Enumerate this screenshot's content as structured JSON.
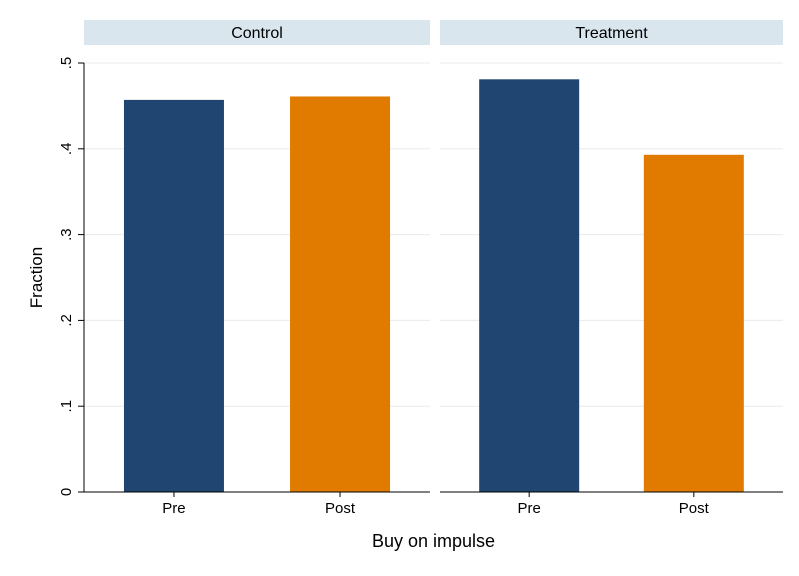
{
  "chart_data": {
    "type": "bar",
    "xlabel": "Buy on impulse",
    "ylabel": "Fraction",
    "ylim": [
      0,
      0.5
    ],
    "yticks": [
      {
        "value": 0,
        "label": "0"
      },
      {
        "value": 0.1,
        "label": ".1"
      },
      {
        "value": 0.2,
        "label": ".2"
      },
      {
        "value": 0.3,
        "label": ".3"
      },
      {
        "value": 0.4,
        "label": ".4"
      },
      {
        "value": 0.5,
        "label": ".5"
      }
    ],
    "categories": [
      "Pre",
      "Post"
    ],
    "bar_colors": [
      "#1f4570",
      "#e07b00"
    ],
    "panel_header_color": "#d9e6ee",
    "gridline_color": "#e8ebee",
    "grid": true,
    "legend": "none",
    "panels": [
      {
        "title": "Control",
        "values": [
          0.457,
          0.461
        ]
      },
      {
        "title": "Treatment",
        "values": [
          0.481,
          0.393
        ]
      }
    ]
  }
}
